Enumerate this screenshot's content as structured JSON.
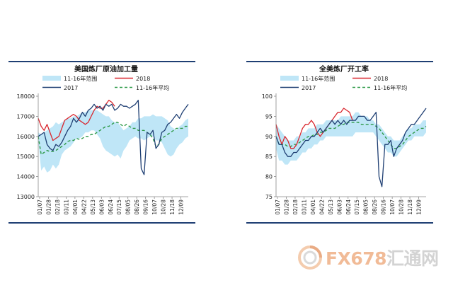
{
  "chart_data": [
    {
      "type": "line",
      "title": "美国炼厂原油加工量",
      "xlabel": "",
      "ylabel": "",
      "ylim": [
        13000,
        18000
      ],
      "yticks": [
        "18000",
        "17000",
        "16000",
        "15000",
        "14000",
        "13000"
      ],
      "ytick_values": [
        18000,
        17000,
        16000,
        15000,
        14000,
        13000
      ],
      "xticks": [
        "01/07",
        "01/28",
        "02/18",
        "03/11",
        "04/01",
        "04/22",
        "05/13",
        "06/03",
        "06/24",
        "07/15",
        "08/05",
        "08/26",
        "09/16",
        "10/07",
        "10/28",
        "11/18",
        "12/09"
      ],
      "legend": [
        "11-16年范围",
        "2018",
        "2017",
        "11-16年平均"
      ],
      "legend_position": "top",
      "grid": false,
      "colors": {
        "band": "#bfe6f7",
        "s2018": "#d9272e",
        "s2017": "#1f3f73",
        "avg": "#2e9a48"
      },
      "series": [
        {
          "name": "11-16年范围",
          "kind": "band",
          "low": [
            15800,
            14300,
            14500,
            14200,
            14300,
            14600,
            14400,
            14600,
            15100,
            15300,
            15400,
            15500,
            15700,
            15900,
            15900,
            16000,
            16200,
            16200,
            16300,
            16300,
            16100,
            15900,
            15500,
            15300,
            15200,
            15100,
            15000,
            15100,
            14900,
            15300,
            15500,
            15800,
            15900,
            16000,
            15900,
            15900,
            15800,
            15900,
            16000,
            16000,
            15800,
            15800,
            15700,
            15400,
            15100,
            15000,
            15100,
            15400,
            15600,
            15700,
            15900,
            16000
          ],
          "high": [
            16200,
            16100,
            16200,
            16300,
            16400,
            16500,
            16700,
            16600,
            16700,
            16800,
            16900,
            16900,
            17000,
            17000,
            17100,
            17200,
            17200,
            17300,
            17300,
            17300,
            17300,
            17200,
            17100,
            17000,
            17000,
            16800,
            16700,
            16700,
            16500,
            16300,
            16400,
            16500,
            16700,
            16700,
            16900,
            16900,
            17000,
            17000,
            17000,
            17100,
            17000,
            17000,
            17000,
            16900,
            16800,
            16500,
            16400,
            16300,
            16500,
            16600,
            16800,
            16900
          ]
        },
        {
          "name": "2018",
          "values": [
            16900,
            16500,
            16300,
            16600,
            16200,
            15800,
            15900,
            16000,
            16400,
            16800,
            16900,
            17000,
            17100,
            17000,
            16800,
            16700,
            16600,
            16700,
            17000,
            17300,
            17500,
            17400,
            17400,
            17600,
            17800,
            17700,
            17500,
            null,
            null,
            null,
            null,
            null,
            null,
            null,
            null,
            null,
            null,
            null,
            null,
            null,
            null,
            null,
            null,
            null,
            null,
            null,
            null,
            null,
            null,
            null,
            null,
            null
          ]
        },
        {
          "name": "2017",
          "values": [
            16000,
            16100,
            16200,
            15600,
            15400,
            15300,
            15600,
            15500,
            15700,
            16000,
            16300,
            16500,
            16900,
            16700,
            16900,
            17200,
            17000,
            17300,
            17400,
            17600,
            17400,
            17500,
            17300,
            17600,
            17500,
            17600,
            17300,
            17400,
            17600,
            17500,
            17500,
            17400,
            17500,
            17600,
            17800,
            14400,
            14100,
            16200,
            16100,
            16300,
            15400,
            15600,
            16200,
            16300,
            16600,
            16700,
            16900,
            17100,
            16900,
            17200,
            17400,
            17600
          ]
        },
        {
          "name": "11-16年平均",
          "values": [
            16000,
            15100,
            15200,
            15300,
            15250,
            15250,
            15300,
            15400,
            15500,
            15600,
            15750,
            15800,
            15800,
            15900,
            15850,
            15900,
            16000,
            16000,
            16100,
            16100,
            16200,
            16300,
            16400,
            16500,
            16500,
            16600,
            16700,
            16700,
            16600,
            16500,
            16600,
            16500,
            16400,
            16400,
            16300,
            16300,
            16300,
            16200,
            16100,
            15900,
            15500,
            15600,
            15900,
            16000,
            16100,
            16200,
            16300,
            16400,
            16400,
            16400,
            16500,
            16500
          ]
        }
      ]
    },
    {
      "type": "line",
      "title": "全美炼厂开工率",
      "xlabel": "",
      "ylabel": "",
      "ylim": [
        75,
        100
      ],
      "yticks": [
        "100",
        "95",
        "90",
        "85",
        "80",
        "75"
      ],
      "ytick_values": [
        100,
        95,
        90,
        85,
        80,
        75
      ],
      "xticks": [
        "01/07",
        "01/28",
        "02/18",
        "03/11",
        "04/01",
        "04/22",
        "05/13",
        "06/03",
        "06/24",
        "07/15",
        "08/05",
        "08/26",
        "09/16",
        "10/07",
        "10/28",
        "11/18",
        "12/09"
      ],
      "legend": [
        "11-16年范围",
        "2018",
        "2017",
        "11-16年平均"
      ],
      "legend_position": "top",
      "grid": false,
      "colors": {
        "band": "#bfe6f7",
        "s2018": "#d9272e",
        "s2017": "#1f3f73",
        "avg": "#2e9a48"
      },
      "series": [
        {
          "name": "11-16年范围",
          "kind": "band",
          "low": [
            87,
            84,
            84,
            83,
            83,
            84,
            84,
            84,
            85,
            86,
            86,
            87,
            87,
            88,
            88,
            89,
            89,
            90,
            90,
            90,
            90,
            90,
            90,
            90,
            90,
            90,
            90,
            91,
            91,
            91,
            91,
            91,
            91,
            91,
            90,
            89,
            88,
            87,
            86,
            86,
            85,
            85,
            86,
            87,
            88,
            89,
            89,
            90,
            90,
            90,
            90,
            91
          ],
          "high": [
            93,
            92,
            91,
            90,
            89,
            89,
            89,
            90,
            90,
            91,
            91,
            92,
            92,
            92,
            93,
            93,
            93,
            94,
            94,
            94,
            94,
            94,
            95,
            95,
            95,
            95,
            95,
            96,
            96,
            95,
            95,
            95,
            94,
            94,
            93,
            93,
            92,
            91,
            90,
            90,
            89,
            89,
            89,
            90,
            91,
            92,
            92,
            93,
            93,
            93,
            94,
            94
          ]
        },
        {
          "name": "2018",
          "values": [
            93,
            90,
            88,
            90,
            89,
            87,
            87,
            88,
            90,
            92,
            93,
            93,
            94,
            93,
            91,
            90,
            91,
            92,
            93,
            94,
            95,
            96,
            96,
            97,
            96.5,
            96,
            94,
            null,
            null,
            null,
            null,
            null,
            null,
            null,
            null,
            null,
            null,
            null,
            null,
            null,
            null,
            null,
            null,
            null,
            null,
            null,
            null,
            null,
            null,
            null,
            null,
            null
          ]
        },
        {
          "name": "2017",
          "values": [
            90,
            88,
            88,
            86,
            85,
            85,
            86,
            86,
            87,
            88,
            89,
            89,
            90,
            90,
            91,
            92,
            91,
            92,
            93,
            94,
            93,
            94,
            93,
            94,
            93,
            94,
            94,
            94,
            95,
            95,
            95,
            94,
            94,
            95,
            96,
            80,
            77.5,
            88,
            88,
            89,
            85,
            87,
            88,
            89,
            91,
            92,
            93,
            93,
            94,
            95,
            96,
            97
          ]
        },
        {
          "name": "11-16年平均",
          "values": [
            90,
            88,
            88,
            88,
            87.5,
            87.5,
            88,
            88,
            88.5,
            89,
            89.5,
            90,
            90,
            90.5,
            90.5,
            91,
            91,
            91.5,
            92,
            92,
            92,
            92.5,
            93,
            93,
            93.5,
            93.5,
            93.5,
            93.5,
            93.5,
            93,
            93,
            93,
            93,
            93,
            92.5,
            92,
            91,
            90,
            89,
            88,
            87,
            87,
            87.5,
            88,
            89,
            90,
            90.5,
            91,
            91.5,
            92,
            92,
            92.5
          ]
        }
      ]
    }
  ],
  "watermark": {
    "text_color": "FX678",
    "text_grey": "汇通网"
  }
}
